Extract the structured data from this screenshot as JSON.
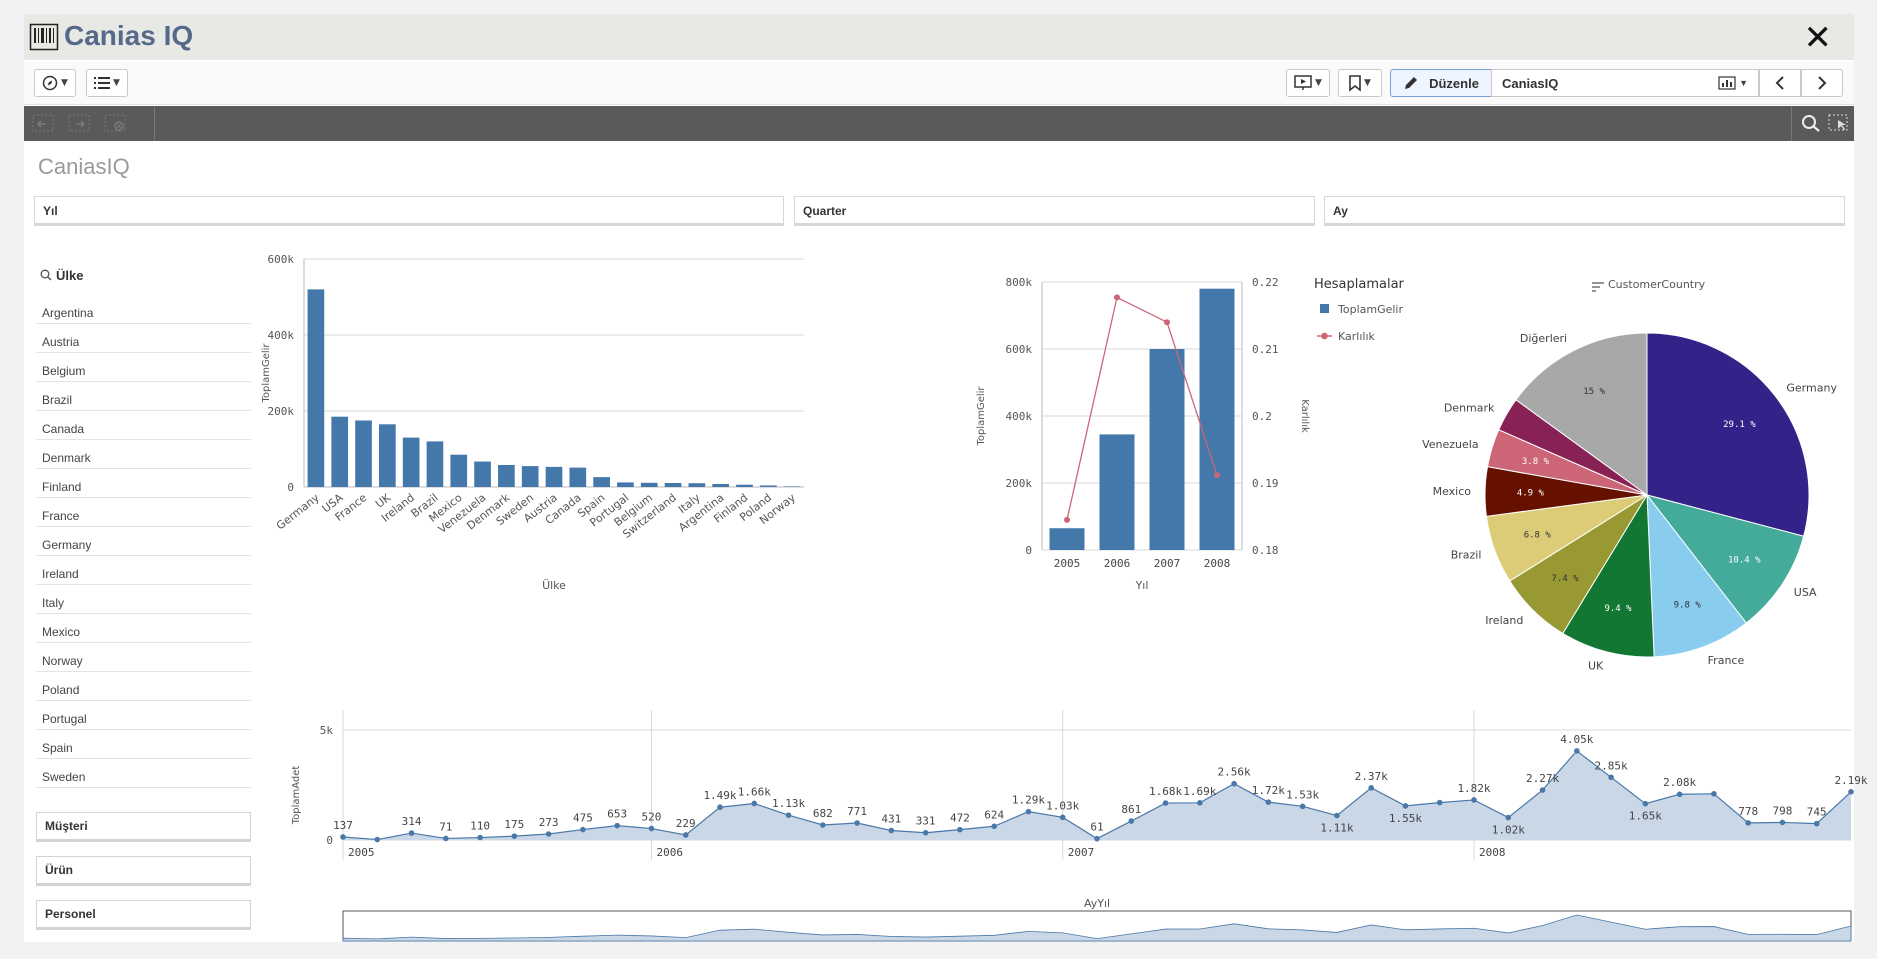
{
  "app": {
    "title": "Canias IQ",
    "close_glyph": "✕"
  },
  "toolbar": {
    "edit_label": "Düzenle",
    "sheet_name": "CaniasIQ",
    "icons": [
      "compass-icon",
      "list-icon",
      "presentation-icon",
      "bookmark-icon",
      "pencil-icon",
      "chart-icon",
      "chevron-left-icon",
      "chevron-right-icon"
    ]
  },
  "sheet": {
    "title": "CaniasIQ"
  },
  "filters": {
    "yil": "Yıl",
    "quarter": "Quarter",
    "ay": "Ay"
  },
  "listbox": {
    "title": "Ülke",
    "items": [
      "Argentina",
      "Austria",
      "Belgium",
      "Brazil",
      "Canada",
      "Denmark",
      "Finland",
      "France",
      "Germany",
      "Ireland",
      "Italy",
      "Mexico",
      "Norway",
      "Poland",
      "Portugal",
      "Spain",
      "Sweden"
    ]
  },
  "dimensions": {
    "musteri": "Müşteri",
    "urun": "Ürün",
    "personel": "Personel"
  },
  "colors": {
    "bar": "#4477aa",
    "line": "#cc6677",
    "area": "#c9d7e7",
    "area_line": "#4a78a8"
  },
  "chart_data": [
    {
      "type": "bar",
      "xlabel": "Ülke",
      "ylabel": "ToplamGelir",
      "ylim": [
        0,
        600000
      ],
      "yticks": [
        "0",
        "200k",
        "400k",
        "600k"
      ],
      "categories": [
        "Germany",
        "USA",
        "France",
        "UK",
        "Ireland",
        "Brazil",
        "Mexico",
        "Venezuela",
        "Denmark",
        "Sweden",
        "Austria",
        "Canada",
        "Spain",
        "Portugal",
        "Belgium",
        "Switzerland",
        "Italy",
        "Argentina",
        "Finland",
        "Poland",
        "Norway"
      ],
      "values": [
        520000,
        185000,
        175000,
        165000,
        130000,
        120000,
        85000,
        67000,
        58000,
        55000,
        53000,
        51000,
        26000,
        12000,
        11000,
        10500,
        10000,
        8000,
        6000,
        4000,
        1500
      ]
    },
    {
      "type": "bar",
      "xlabel": "Yıl",
      "ylabel": "ToplamGelir",
      "y2label": "Karlılık",
      "ylim": [
        0,
        800000
      ],
      "y2lim": [
        0.18,
        0.22
      ],
      "yticks": [
        "0",
        "200k",
        "400k",
        "600k",
        "800k"
      ],
      "y2ticks": [
        "0.18",
        "0.19",
        "0.2",
        "0.21",
        "0.22"
      ],
      "legend_title": "Hesaplamalar",
      "categories": [
        "2005",
        "2006",
        "2007",
        "2008"
      ],
      "series": [
        {
          "name": "ToplamGelir",
          "type": "bar",
          "values": [
            65000,
            345000,
            600000,
            780000
          ]
        },
        {
          "name": "Karlılık",
          "type": "line",
          "values": [
            0.1845,
            0.2177,
            0.214,
            0.1912
          ]
        }
      ]
    },
    {
      "type": "pie",
      "title": "CustomerCountry",
      "slices": [
        {
          "label": "Germany",
          "value": 29.1,
          "pct": "29.1 %",
          "color": "#332288"
        },
        {
          "label": "USA",
          "value": 10.4,
          "pct": "10.4 %",
          "color": "#44aa99"
        },
        {
          "label": "France",
          "value": 9.8,
          "pct": "9.8 %",
          "color": "#88ccee"
        },
        {
          "label": "UK",
          "value": 9.4,
          "pct": "9.4 %",
          "color": "#117733"
        },
        {
          "label": "Ireland",
          "value": 7.4,
          "pct": "7.4 %",
          "color": "#999933"
        },
        {
          "label": "Brazil",
          "value": 6.8,
          "pct": "6.8 %",
          "color": "#ddcc77"
        },
        {
          "label": "Mexico",
          "value": 4.9,
          "pct": "4.9 %",
          "color": "#661100"
        },
        {
          "label": "Venezuela",
          "value": 3.8,
          "pct": "3.8 %",
          "color": "#cc6677"
        },
        {
          "label": "Denmark",
          "value": 3.4,
          "pct": "",
          "color": "#882255"
        },
        {
          "label": "Diğerleri",
          "value": 15.0,
          "pct": "15 %",
          "color": "#a8a8a8"
        }
      ]
    },
    {
      "type": "area",
      "xlabel": "AyYıl",
      "ylabel": "ToplamAdet",
      "ylim": [
        0,
        5000
      ],
      "yticks": [
        "0",
        "5k"
      ],
      "year_labels": [
        "2005",
        "2006",
        "2007",
        "2008"
      ],
      "year_starts": [
        0,
        9,
        21,
        33
      ],
      "values": [
        137,
        20,
        314,
        71,
        110,
        175,
        273,
        475,
        653,
        520,
        229,
        1490,
        1660,
        1130,
        682,
        771,
        431,
        331,
        472,
        624,
        1290,
        1030,
        61,
        861,
        1680,
        1690,
        2560,
        1720,
        1530,
        1110,
        2370,
        1550,
        1700,
        1820,
        1020,
        2270,
        4050,
        2850,
        1650,
        2080,
        2100,
        778,
        798,
        745,
        2190
      ],
      "labels": [
        "137",
        "",
        "314",
        "71",
        "110",
        "175",
        "273",
        "475",
        "653",
        "520",
        "229",
        "1.49k",
        "1.66k",
        "1.13k",
        "682",
        "771",
        "431",
        "331",
        "472",
        "624",
        "1.29k",
        "1.03k",
        "61",
        "861",
        "1.68k",
        "1.69k",
        "2.56k",
        "1.72k",
        "1.53k",
        "1.11k",
        "2.37k",
        "1.55k",
        "",
        "1.82k",
        "1.02k",
        "2.27k",
        "4.05k",
        "2.85k",
        "1.65k",
        "2.08k",
        "",
        "778",
        "798",
        "745",
        "2.19k"
      ]
    }
  ]
}
